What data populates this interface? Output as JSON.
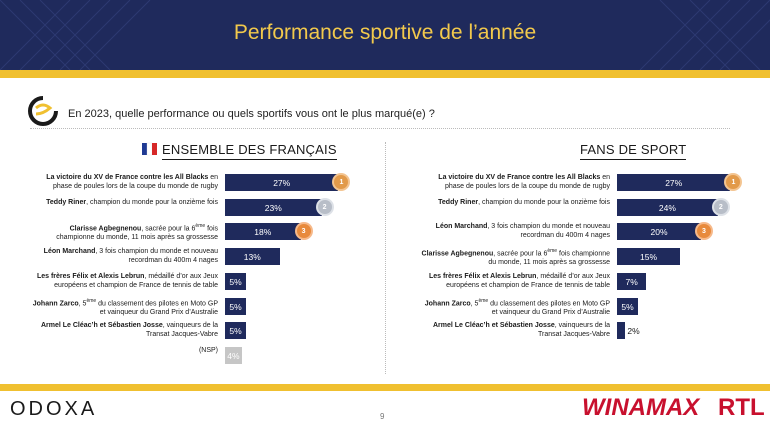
{
  "header": {
    "title": "Performance sportive de l’année"
  },
  "question": "En 2023, quelle performance ou quels sportifs vous ont le plus marqué(e) ?",
  "footer": {
    "brand": "ODOXA",
    "page": "9",
    "partner1": "WINAMAX",
    "partner2": "RTL"
  },
  "colors": {
    "navy": "#1f2a5c",
    "gold": "#f0c030",
    "bar": "#1f2a5c",
    "nsp": "#c6c6c6"
  },
  "chart_data": [
    {
      "type": "bar",
      "title": "ENSEMBLE DES FRANÇAIS",
      "categories": [
        "La victoire du XV de France contre les All Blacks en phase de poules lors de la coupe du monde de rugby",
        "Teddy Riner, champion du monde pour la onzième fois",
        "Clarisse Agbegnenou, sacrée pour la 6ème fois championne du monde, 11 mois après sa grossesse",
        "Léon Marchand, 3 fois champion du monde et nouveau recordman du 400m 4 nages",
        "Les frères Félix et Alexis Lebrun, médaillé d’or aux Jeux européens et champion de France de tennis de table",
        "Johann Zarco, 5ème du classement des pilotes en Moto GP et vainqueur du Grand Prix d’Australie",
        "Armel Le Cléac’h et Sébastien Josse, vainqueurs de la Transat Jacques-Vabre",
        "(NSP)"
      ],
      "values": [
        27,
        23,
        18,
        13,
        5,
        5,
        5,
        4
      ],
      "value_labels": [
        "27%",
        "23%",
        "18%",
        "13%",
        "5%",
        "5%",
        "5%",
        "4%"
      ],
      "medals": [
        "1",
        "2",
        "3",
        "",
        "",
        "",
        "",
        ""
      ]
    },
    {
      "type": "bar",
      "title": "FANS DE SPORT",
      "categories": [
        "La victoire du XV de France contre les All Blacks en phase de poules lors de la coupe du monde de rugby",
        "Teddy Riner, champion du monde pour la onzième fois",
        "Léon Marchand, 3 fois champion du monde et nouveau recordman du 400m 4 nages",
        "Clarisse Agbegnenou, sacrée pour la 6ème fois championne du monde, 11 mois après sa grossesse",
        "Les frères Félix et Alexis Lebrun, médaillé d’or aux Jeux européens et champion de France de tennis de table",
        "Johann Zarco, 5ème du classement des pilotes en Moto GP et vainqueur du Grand Prix d’Australie",
        "Armel Le Cléac’h et Sébastien Josse, vainqueurs de la Transat Jacques-Vabre"
      ],
      "values": [
        27,
        24,
        20,
        15,
        7,
        5,
        2
      ],
      "value_labels": [
        "27%",
        "24%",
        "20%",
        "15%",
        "7%",
        "5%",
        "2%"
      ],
      "medals": [
        "1",
        "2",
        "3",
        "",
        "",
        "",
        ""
      ]
    }
  ]
}
